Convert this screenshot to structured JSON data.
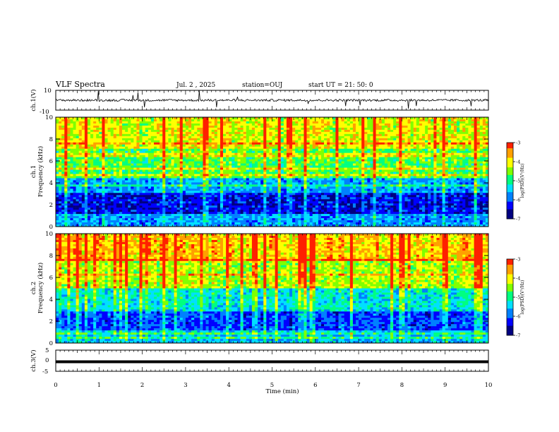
{
  "header": {
    "title": "VLF Spectra",
    "date": "Jul. 2 , 2025",
    "station": "station=OUJ",
    "start": "start UT = 21: 50: 0"
  },
  "chart_data": [
    {
      "type": "line",
      "panel": "ch1-waveform",
      "ylabel": "ch.1(V)",
      "ylim": [
        -10,
        10
      ],
      "yticks": [
        "10",
        "-10"
      ],
      "xlim": [
        0,
        10
      ],
      "description_series": "broadband waveform ~0 V with impulsive spikes"
    },
    {
      "type": "heatmap",
      "panel": "ch1-spectrogram",
      "ylabel": [
        "ch.1",
        "Frequency (kHz)"
      ],
      "ylim": [
        0,
        10
      ],
      "yticks": [
        "0",
        "2",
        "4",
        "6",
        "8",
        "10"
      ],
      "xlim": [
        0,
        10
      ],
      "colorbar": {
        "label": "log(PSD)(V²/Hz)",
        "range": [
          -7,
          -3
        ],
        "ticks": [
          "-3",
          "-4",
          "-5",
          "-6",
          "-7"
        ]
      }
    },
    {
      "type": "heatmap",
      "panel": "ch2-spectrogram",
      "ylabel": [
        "ch.2",
        "Frequency (kHz)"
      ],
      "ylim": [
        0,
        10
      ],
      "yticks": [
        "0",
        "2",
        "4",
        "6",
        "8",
        "10"
      ],
      "xlim": [
        0,
        10
      ],
      "colorbar": {
        "label": "log(PSD)(V²/Hz)",
        "range": [
          -7,
          -3
        ],
        "ticks": [
          "-3",
          "-4",
          "-5",
          "-6",
          "-7"
        ]
      }
    },
    {
      "type": "line",
      "panel": "ch3-waveform",
      "ylabel": "ch.3(V)",
      "ylim": [
        -5,
        5
      ],
      "yticks": [
        "5",
        "0",
        "-5"
      ],
      "xlim": [
        0,
        10
      ],
      "constant_value": -0.5
    }
  ],
  "xaxis": {
    "label": "Time (min)",
    "ticks": [
      "0",
      "1",
      "2",
      "3",
      "4",
      "5",
      "6",
      "7",
      "8",
      "9",
      "10"
    ]
  },
  "colormap": [
    "#000080",
    "#0000ff",
    "#0080ff",
    "#00e0ff",
    "#00ff80",
    "#80ff00",
    "#ffff00",
    "#ffa000",
    "#ff2000",
    "#ffffff"
  ]
}
